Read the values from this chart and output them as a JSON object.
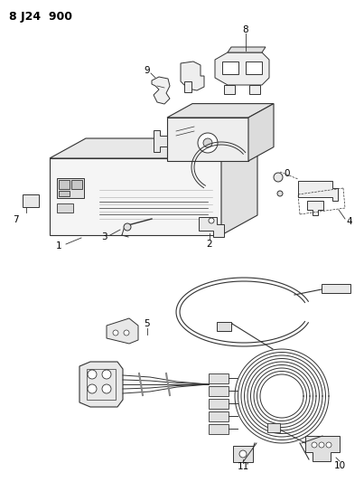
{
  "title": "8 J24  900",
  "bg_color": "#ffffff",
  "line_color": "#333333",
  "fig_width": 4.03,
  "fig_height": 5.33,
  "dpi": 100,
  "label_fontsize": 7.5,
  "title_fontsize": 9
}
